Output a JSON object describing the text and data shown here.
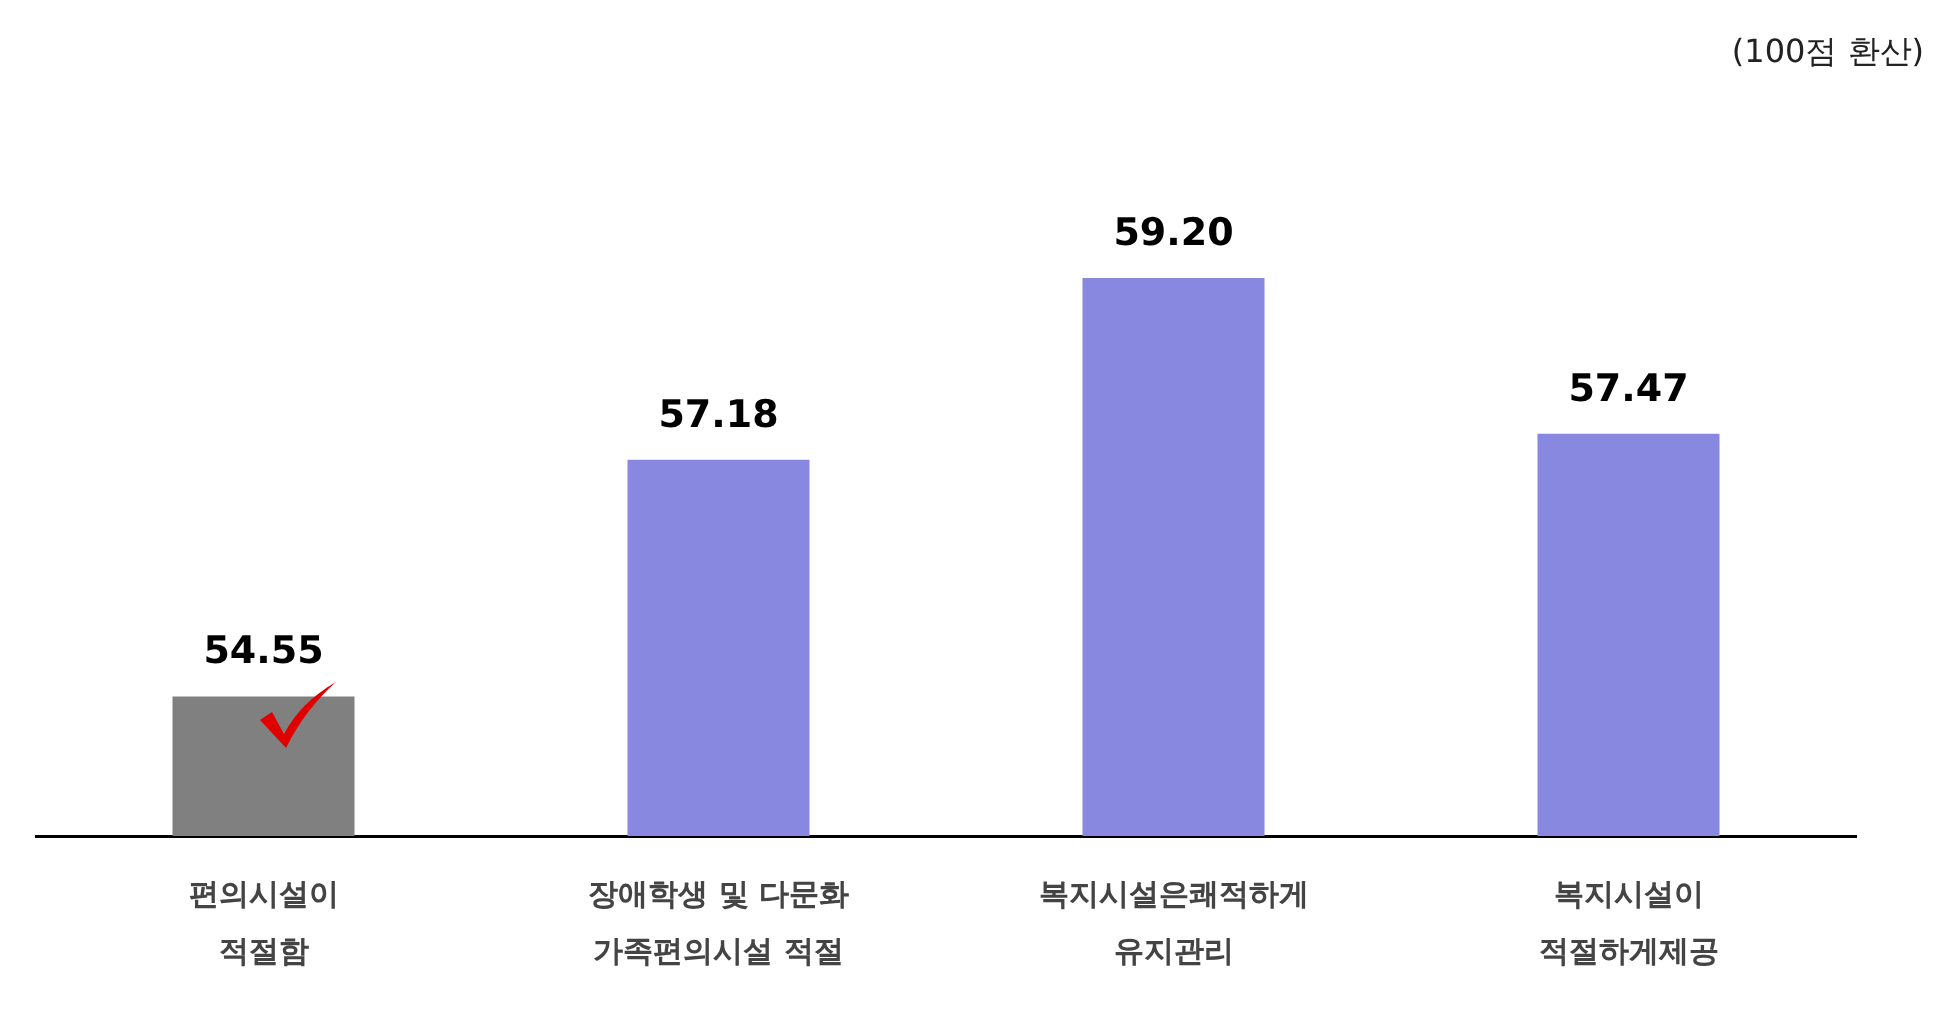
{
  "chart_data": {
    "type": "bar",
    "categories": [
      "편의시설이\n적절함",
      "장애학생 및 다문화\n가족편의시설 적절",
      "복지시설은쾌적하게\n유지관리",
      "복지시설이\n적절하게제공"
    ],
    "values": [
      54.55,
      57.18,
      59.2,
      57.47
    ],
    "value_labels": [
      "54.55",
      "57.18",
      "59.20",
      "57.47"
    ],
    "colors": [
      "#808080",
      "#8888e0",
      "#8888e0",
      "#8888e0"
    ],
    "annotations": [
      "(100점 환산)"
    ],
    "grid": false,
    "legend": false
  }
}
